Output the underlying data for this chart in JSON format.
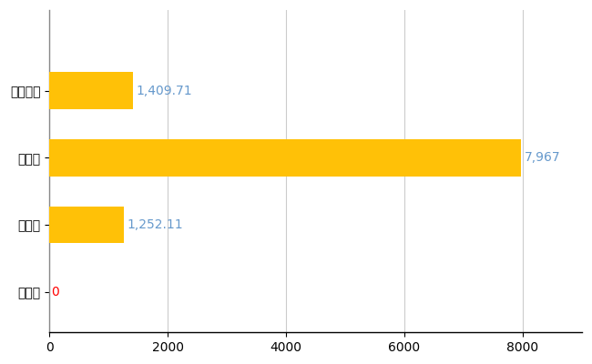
{
  "categories": [
    "上野村",
    "県平均",
    "県最大",
    "全国平均"
  ],
  "values": [
    0,
    1252.11,
    7967,
    1409.71
  ],
  "bar_color": "#FFC107",
  "value_labels": [
    "0",
    "1,252.11",
    "7,967",
    "1,409.71"
  ],
  "label_color_0": "#FF0000",
  "label_color_other": "#6699CC",
  "xlim": [
    0,
    9000
  ],
  "xticks": [
    0,
    2000,
    4000,
    6000,
    8000
  ],
  "background_color": "#FFFFFF",
  "grid_color": "#CCCCCC",
  "bar_height": 0.55,
  "label_fontsize": 10,
  "tick_fontsize": 10
}
